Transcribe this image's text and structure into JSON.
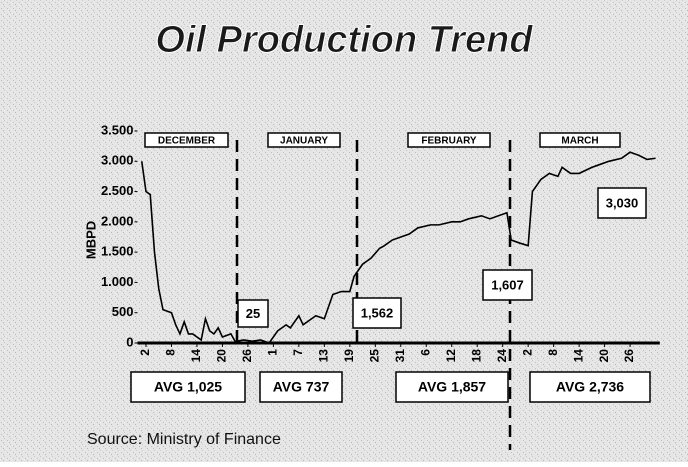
{
  "chart_data": {
    "type": "line",
    "title": "Oil Production Trend",
    "y_label": "MBPD",
    "source": "Source: Ministry of Finance",
    "month_labels": [
      "DECEMBER",
      "JANUARY",
      "FEBRUARY",
      "MARCH"
    ],
    "averages": [
      "AVG  1,025",
      "AVG  737",
      "AVG  1,857",
      "AVG  2,736"
    ],
    "annotations": [
      "25",
      "1,562",
      "1,607",
      "3,030"
    ],
    "color": "#000000",
    "xlim": [
      0,
      123
    ],
    "ylim": [
      0,
      3500
    ],
    "yticks": [
      {
        "value": 0,
        "label": "0"
      },
      {
        "value": 500,
        "label": "500"
      },
      {
        "value": 1000,
        "label": "1.000"
      },
      {
        "value": 1500,
        "label": "1.500"
      },
      {
        "value": 2000,
        "label": "2.000"
      },
      {
        "value": 2500,
        "label": "2.500"
      },
      {
        "value": 3000,
        "label": "3.000"
      },
      {
        "value": 3500,
        "label": "3.500"
      }
    ],
    "xticks": [
      {
        "value": 2,
        "label": "2"
      },
      {
        "value": 8,
        "label": "8"
      },
      {
        "value": 14,
        "label": "14"
      },
      {
        "value": 20,
        "label": "20"
      },
      {
        "value": 26,
        "label": "26"
      },
      {
        "value": 32,
        "label": "1"
      },
      {
        "value": 38,
        "label": "7"
      },
      {
        "value": 44,
        "label": "13"
      },
      {
        "value": 50,
        "label": "19"
      },
      {
        "value": 56,
        "label": "25"
      },
      {
        "value": 62,
        "label": "31"
      },
      {
        "value": 68,
        "label": "6"
      },
      {
        "value": 74,
        "label": "12"
      },
      {
        "value": 80,
        "label": "18"
      },
      {
        "value": 86,
        "label": "24"
      },
      {
        "value": 92,
        "label": "2"
      },
      {
        "value": 98,
        "label": "8"
      },
      {
        "value": 104,
        "label": "14"
      },
      {
        "value": 110,
        "label": "20"
      },
      {
        "value": 116,
        "label": "26"
      }
    ],
    "x": [
      1,
      2,
      3,
      4,
      5,
      6,
      8,
      9,
      10,
      11,
      12,
      13,
      15,
      16,
      17,
      18,
      19,
      20,
      22,
      23,
      25,
      27,
      29,
      31,
      33,
      35,
      36,
      38,
      39,
      41,
      42,
      44,
      46,
      48,
      50,
      51,
      53,
      55,
      57,
      58,
      60,
      62,
      64,
      66,
      69,
      71,
      74,
      76,
      78,
      81,
      83,
      85,
      87,
      88,
      90,
      92,
      93,
      95,
      97,
      99,
      100,
      102,
      104,
      107,
      109,
      111,
      114,
      116,
      118,
      120,
      122
    ],
    "values": [
      3000,
      2500,
      2450,
      1500,
      900,
      550,
      500,
      300,
      150,
      350,
      150,
      150,
      50,
      400,
      200,
      150,
      250,
      100,
      150,
      25,
      50,
      30,
      50,
      0,
      200,
      300,
      250,
      450,
      300,
      400,
      450,
      400,
      800,
      850,
      850,
      1100,
      1300,
      1400,
      1562,
      1600,
      1700,
      1750,
      1800,
      1900,
      1950,
      1950,
      2000,
      2000,
      2050,
      2100,
      2050,
      2100,
      2150,
      1700,
      1650,
      1607,
      2500,
      2700,
      2800,
      2750,
      2900,
      2800,
      2800,
      2900,
      2950,
      3000,
      3050,
      3150,
      3100,
      3030,
      3050
    ]
  }
}
